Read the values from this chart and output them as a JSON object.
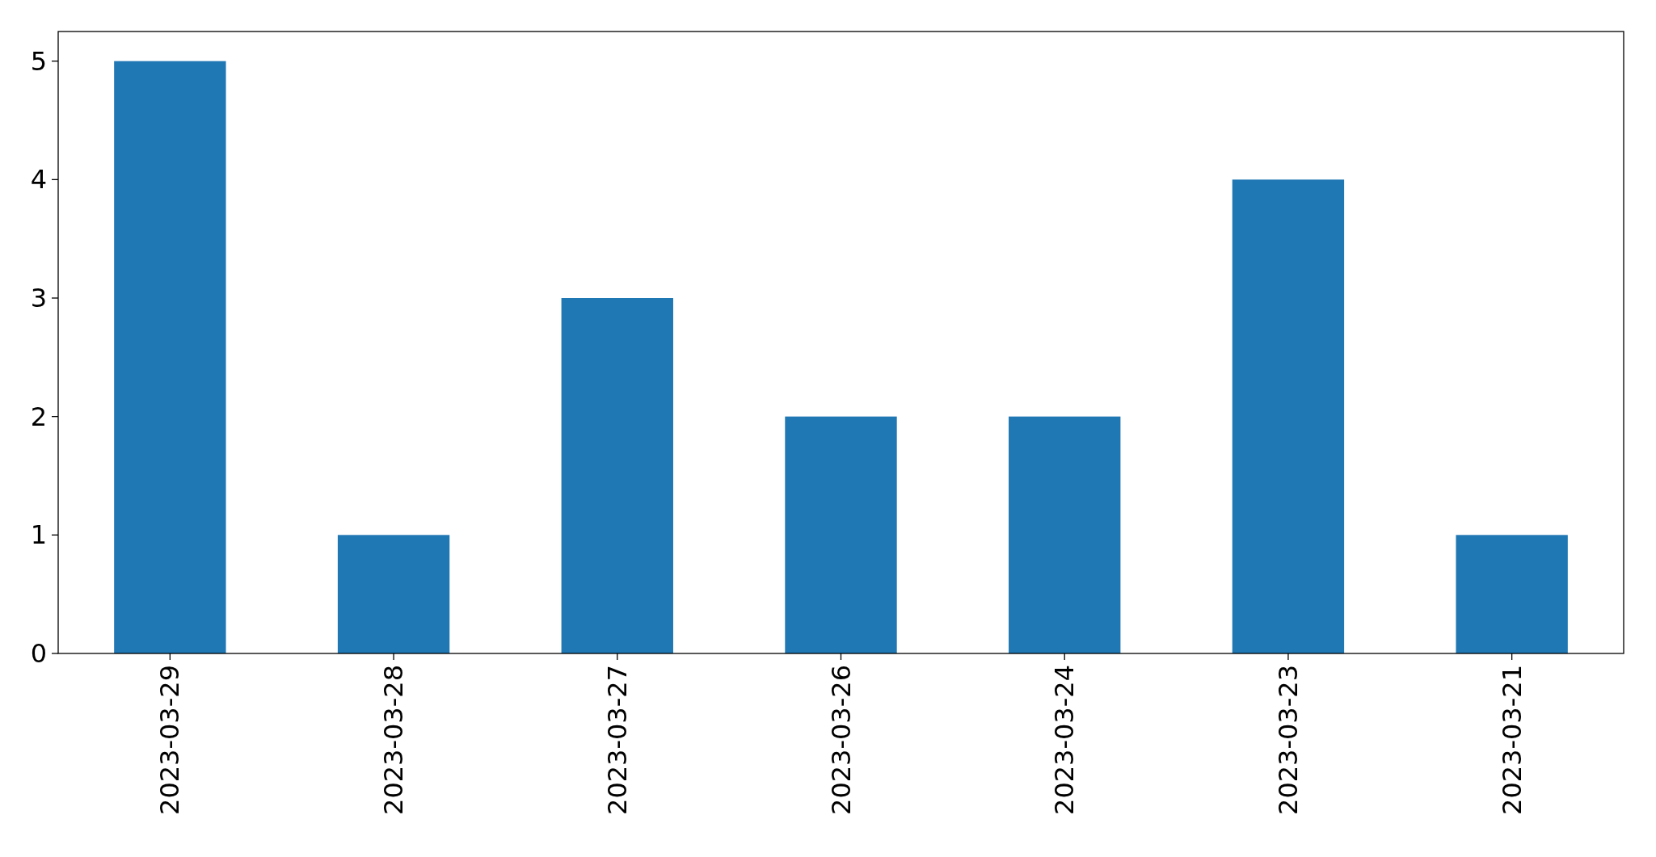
{
  "chart_data": {
    "type": "bar",
    "categories": [
      "2023-03-29",
      "2023-03-28",
      "2023-03-27",
      "2023-03-26",
      "2023-03-24",
      "2023-03-23",
      "2023-03-21"
    ],
    "values": [
      5,
      1,
      3,
      2,
      2,
      4,
      1
    ],
    "color": "#1f77b4",
    "ylim": [
      0,
      5.25
    ],
    "yticks": [
      0,
      1,
      2,
      3,
      4,
      5
    ]
  }
}
